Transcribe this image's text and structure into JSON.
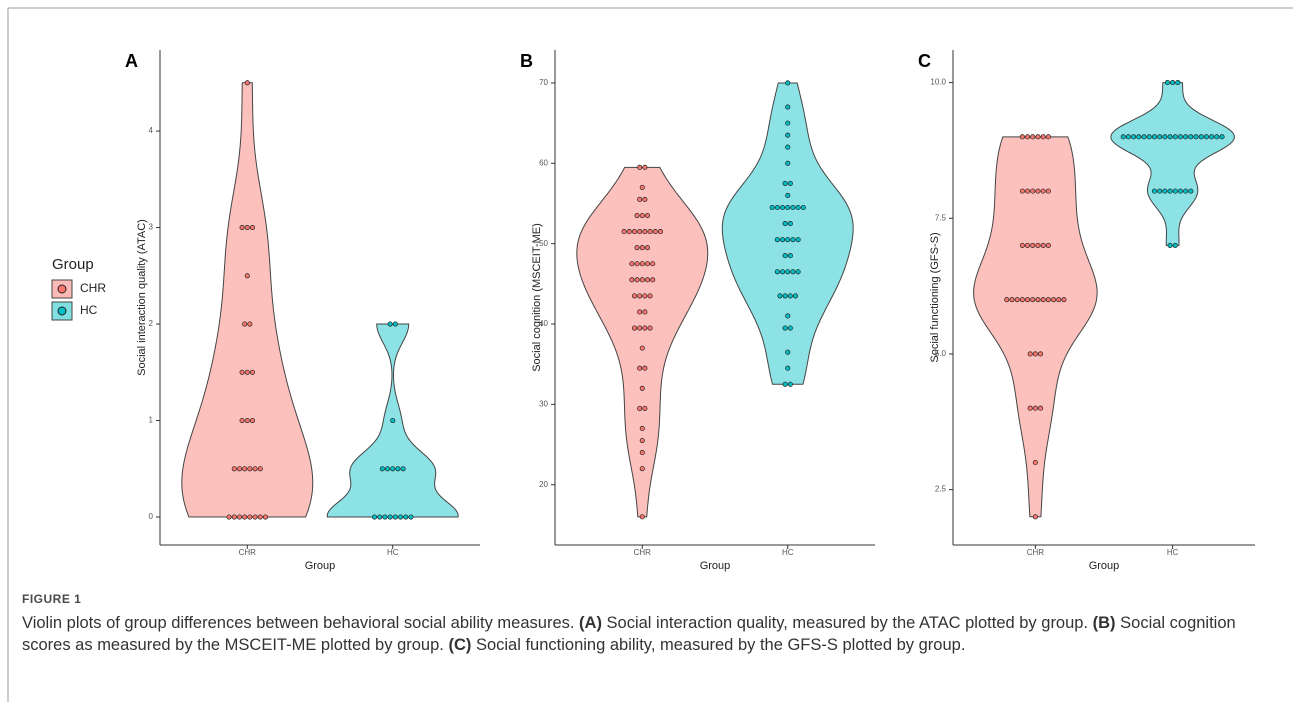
{
  "chart_data": [
    {
      "type": "violin",
      "panel": "A",
      "y_label": "Social interaction quality (ATAC)",
      "x_label": "Group",
      "categories": [
        "CHR",
        "HC"
      ],
      "series": [
        {
          "name": "CHR",
          "color": "#F8766D",
          "values": [
            4.5,
            3,
            3,
            3,
            2.5,
            2,
            2,
            1.5,
            1.5,
            1.5,
            1,
            1,
            1,
            0.5,
            0.5,
            0.5,
            0.5,
            0.5,
            0.5,
            0,
            0,
            0,
            0,
            0,
            0,
            0,
            0
          ]
        },
        {
          "name": "HC",
          "color": "#00BFC4",
          "values": [
            2,
            2,
            1,
            0.5,
            0.5,
            0.5,
            0.5,
            0.5,
            0,
            0,
            0,
            0,
            0,
            0,
            0,
            0
          ]
        }
      ],
      "ylim": [
        -0.29,
        4.84
      ],
      "yticks": [
        0,
        1,
        2,
        3,
        4
      ]
    },
    {
      "type": "violin",
      "panel": "B",
      "y_label": "Social cognition (MSCEIT-ME)",
      "x_label": "Group",
      "categories": [
        "CHR",
        "HC"
      ],
      "series": [
        {
          "name": "CHR",
          "color": "#F8766D",
          "values": [
            16,
            22,
            24,
            25.5,
            27,
            29.5,
            29.5,
            32,
            34.5,
            34.5,
            37,
            39.5,
            39.5,
            39.5,
            39.5,
            41.5,
            41.5,
            43.5,
            43.5,
            43.5,
            43.5,
            45.5,
            45.5,
            45.5,
            45.5,
            45.5,
            47.5,
            47.5,
            47.5,
            47.5,
            47.5,
            49.5,
            49.5,
            49.5,
            51.5,
            51.5,
            51.5,
            51.5,
            51.5,
            51.5,
            51.5,
            51.5,
            53.5,
            53.5,
            53.5,
            55.5,
            55.5,
            57,
            59.5,
            59.5
          ]
        },
        {
          "name": "HC",
          "color": "#00BFC4",
          "values": [
            32.5,
            32.5,
            34.5,
            36.5,
            39.5,
            39.5,
            41,
            43.5,
            43.5,
            43.5,
            43.5,
            46.5,
            46.5,
            46.5,
            46.5,
            46.5,
            48.5,
            48.5,
            50.5,
            50.5,
            50.5,
            50.5,
            50.5,
            52.5,
            52.5,
            54.5,
            54.5,
            54.5,
            54.5,
            54.5,
            54.5,
            54.5,
            56,
            57.5,
            57.5,
            60,
            62,
            63.5,
            65,
            67,
            70
          ]
        }
      ],
      "ylim": [
        12.5,
        74.1
      ],
      "yticks": [
        20,
        30,
        40,
        50,
        60,
        70
      ]
    },
    {
      "type": "violin",
      "panel": "C",
      "y_label": "Social functioning (GFS-S)",
      "x_label": "Group",
      "categories": [
        "CHR",
        "HC"
      ],
      "series": [
        {
          "name": "CHR",
          "color": "#F8766D",
          "values": [
            9,
            9,
            9,
            9,
            9,
            9,
            8,
            8,
            8,
            8,
            8,
            8,
            7,
            7,
            7,
            7,
            7,
            7,
            6,
            6,
            6,
            6,
            6,
            6,
            6,
            6,
            6,
            6,
            6,
            6,
            5,
            5,
            5,
            4,
            4,
            4,
            3,
            2
          ]
        },
        {
          "name": "HC",
          "color": "#00BFC4",
          "values": [
            10,
            10,
            10,
            9,
            9,
            9,
            9,
            9,
            9,
            9,
            9,
            9,
            9,
            9,
            9,
            9,
            9,
            9,
            9,
            9,
            9,
            9,
            9,
            8,
            8,
            8,
            8,
            8,
            8,
            8,
            8,
            7,
            7
          ]
        }
      ],
      "ylim": [
        1.48,
        10.6
      ],
      "yticks": [
        2.5,
        {
          "value": 5,
          "label": "5.0"
        },
        7.5,
        {
          "value": 10,
          "label": "10.0"
        }
      ]
    }
  ],
  "legend_title": "Group",
  "caption": {
    "label": "FIGURE 1",
    "parts": [
      {
        "text": "Violin plots of group differences between behavioral social ability measures. ",
        "bold": false
      },
      {
        "text": "(A)",
        "bold": true
      },
      {
        "text": " Social interaction quality, measured by the ATAC plotted by group. ",
        "bold": false
      },
      {
        "text": "(B)",
        "bold": true
      },
      {
        "text": " Social cognition scores as measured by the MSCEIT-ME plotted by group. ",
        "bold": false
      },
      {
        "text": "(C)",
        "bold": true
      },
      {
        "text": " Social functioning ability, measured by the GFS-S plotted by group.",
        "bold": false
      }
    ]
  }
}
